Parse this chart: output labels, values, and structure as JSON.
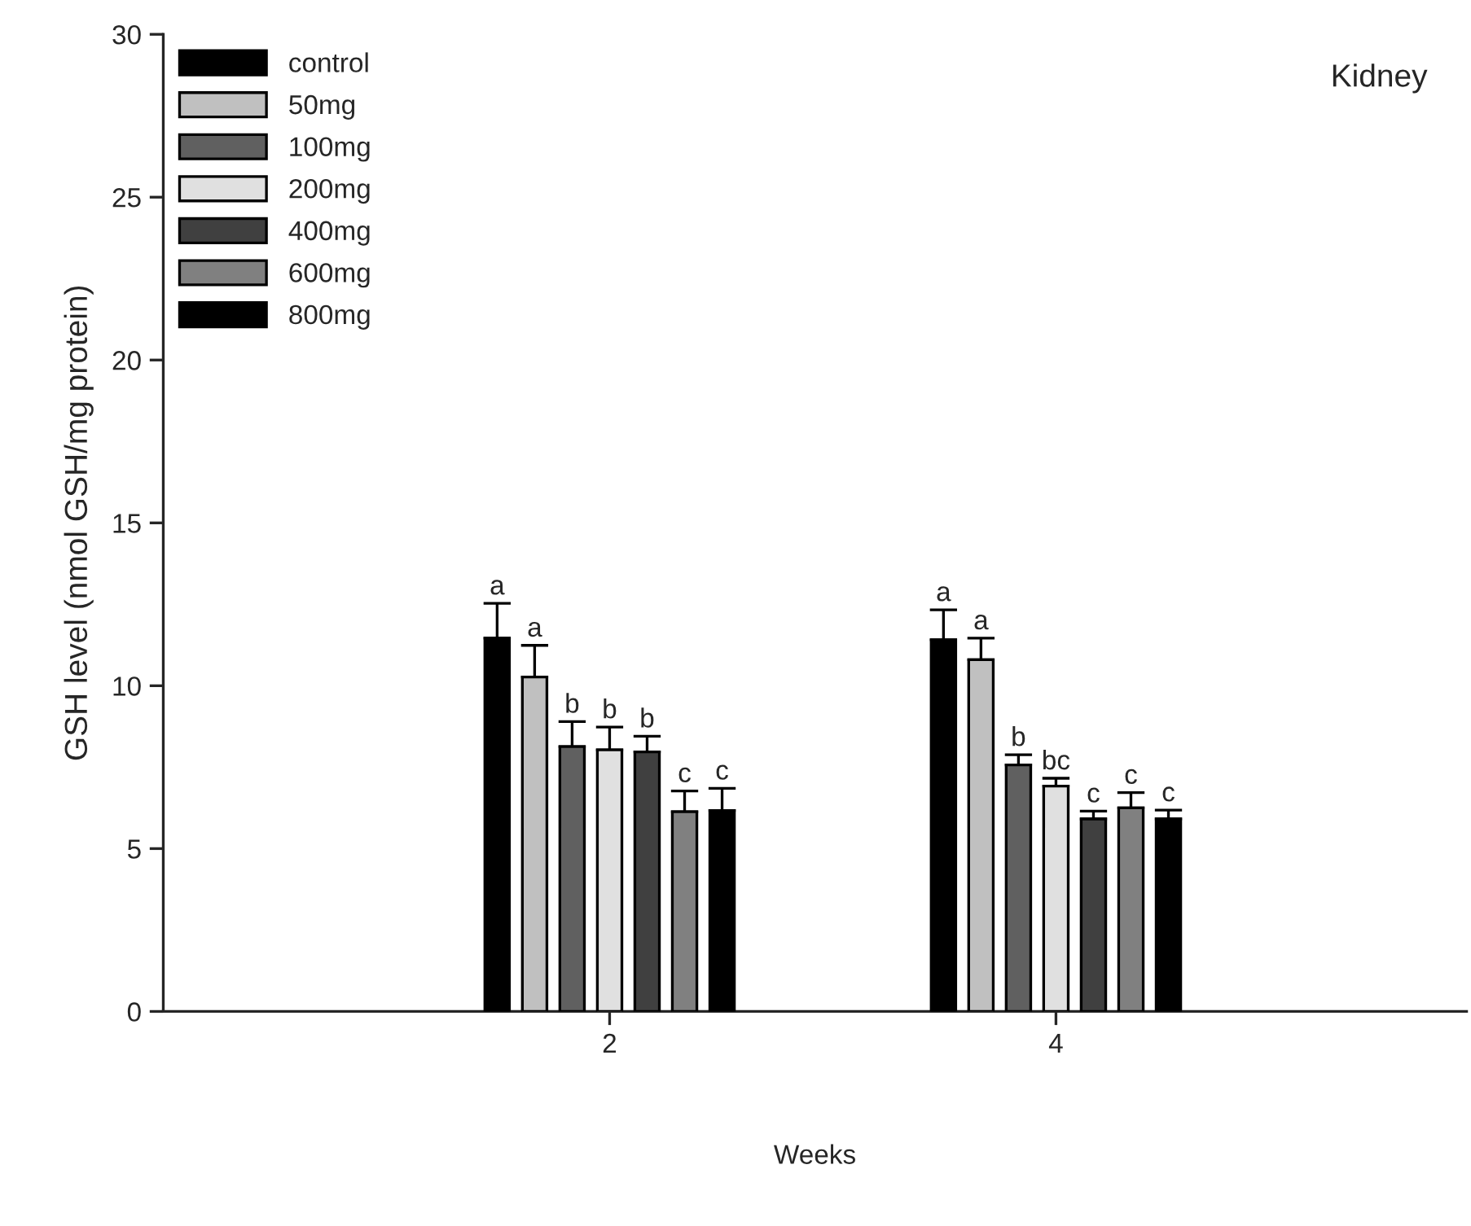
{
  "chart_data": {
    "type": "bar",
    "xlabel": "Weeks",
    "ylabel": "GSH level (nmol GSH/mg protein)",
    "categories": [
      "2",
      "4"
    ],
    "ylim": [
      0,
      30
    ],
    "yticks": [
      0,
      5,
      10,
      15,
      20,
      25,
      30
    ],
    "grid": false,
    "legend": "top left",
    "annotations": [
      "Kidney"
    ],
    "series": [
      {
        "name": "control",
        "color": "#000000",
        "values": [
          11.46,
          11.41
        ],
        "errors": [
          1.07,
          0.92
        ],
        "value_labels": [
          "a",
          "a"
        ]
      },
      {
        "name": "50mg",
        "color": "#c0c0c0",
        "values": [
          10.27,
          10.8
        ],
        "errors": [
          0.97,
          0.66
        ],
        "value_labels": [
          "a",
          "a"
        ]
      },
      {
        "name": "100mg",
        "color": "#606060",
        "values": [
          8.13,
          7.57
        ],
        "errors": [
          0.77,
          0.31
        ],
        "value_labels": [
          "b",
          "b"
        ]
      },
      {
        "name": "200mg",
        "color": "#e0e0e0",
        "values": [
          8.03,
          6.92
        ],
        "errors": [
          0.7,
          0.24
        ],
        "value_labels": [
          "b",
          "bc"
        ]
      },
      {
        "name": "400mg",
        "color": "#404040",
        "values": [
          7.97,
          5.91
        ],
        "errors": [
          0.48,
          0.24
        ],
        "value_labels": [
          "b",
          "c"
        ]
      },
      {
        "name": "600mg",
        "color": "#808080",
        "values": [
          6.13,
          6.25
        ],
        "errors": [
          0.64,
          0.47
        ],
        "value_labels": [
          "c",
          "c"
        ]
      },
      {
        "name": "800mg",
        "color": "#000000",
        "values": [
          6.17,
          5.91
        ],
        "errors": [
          0.68,
          0.27
        ],
        "value_labels": [
          "c",
          "c"
        ]
      }
    ]
  }
}
